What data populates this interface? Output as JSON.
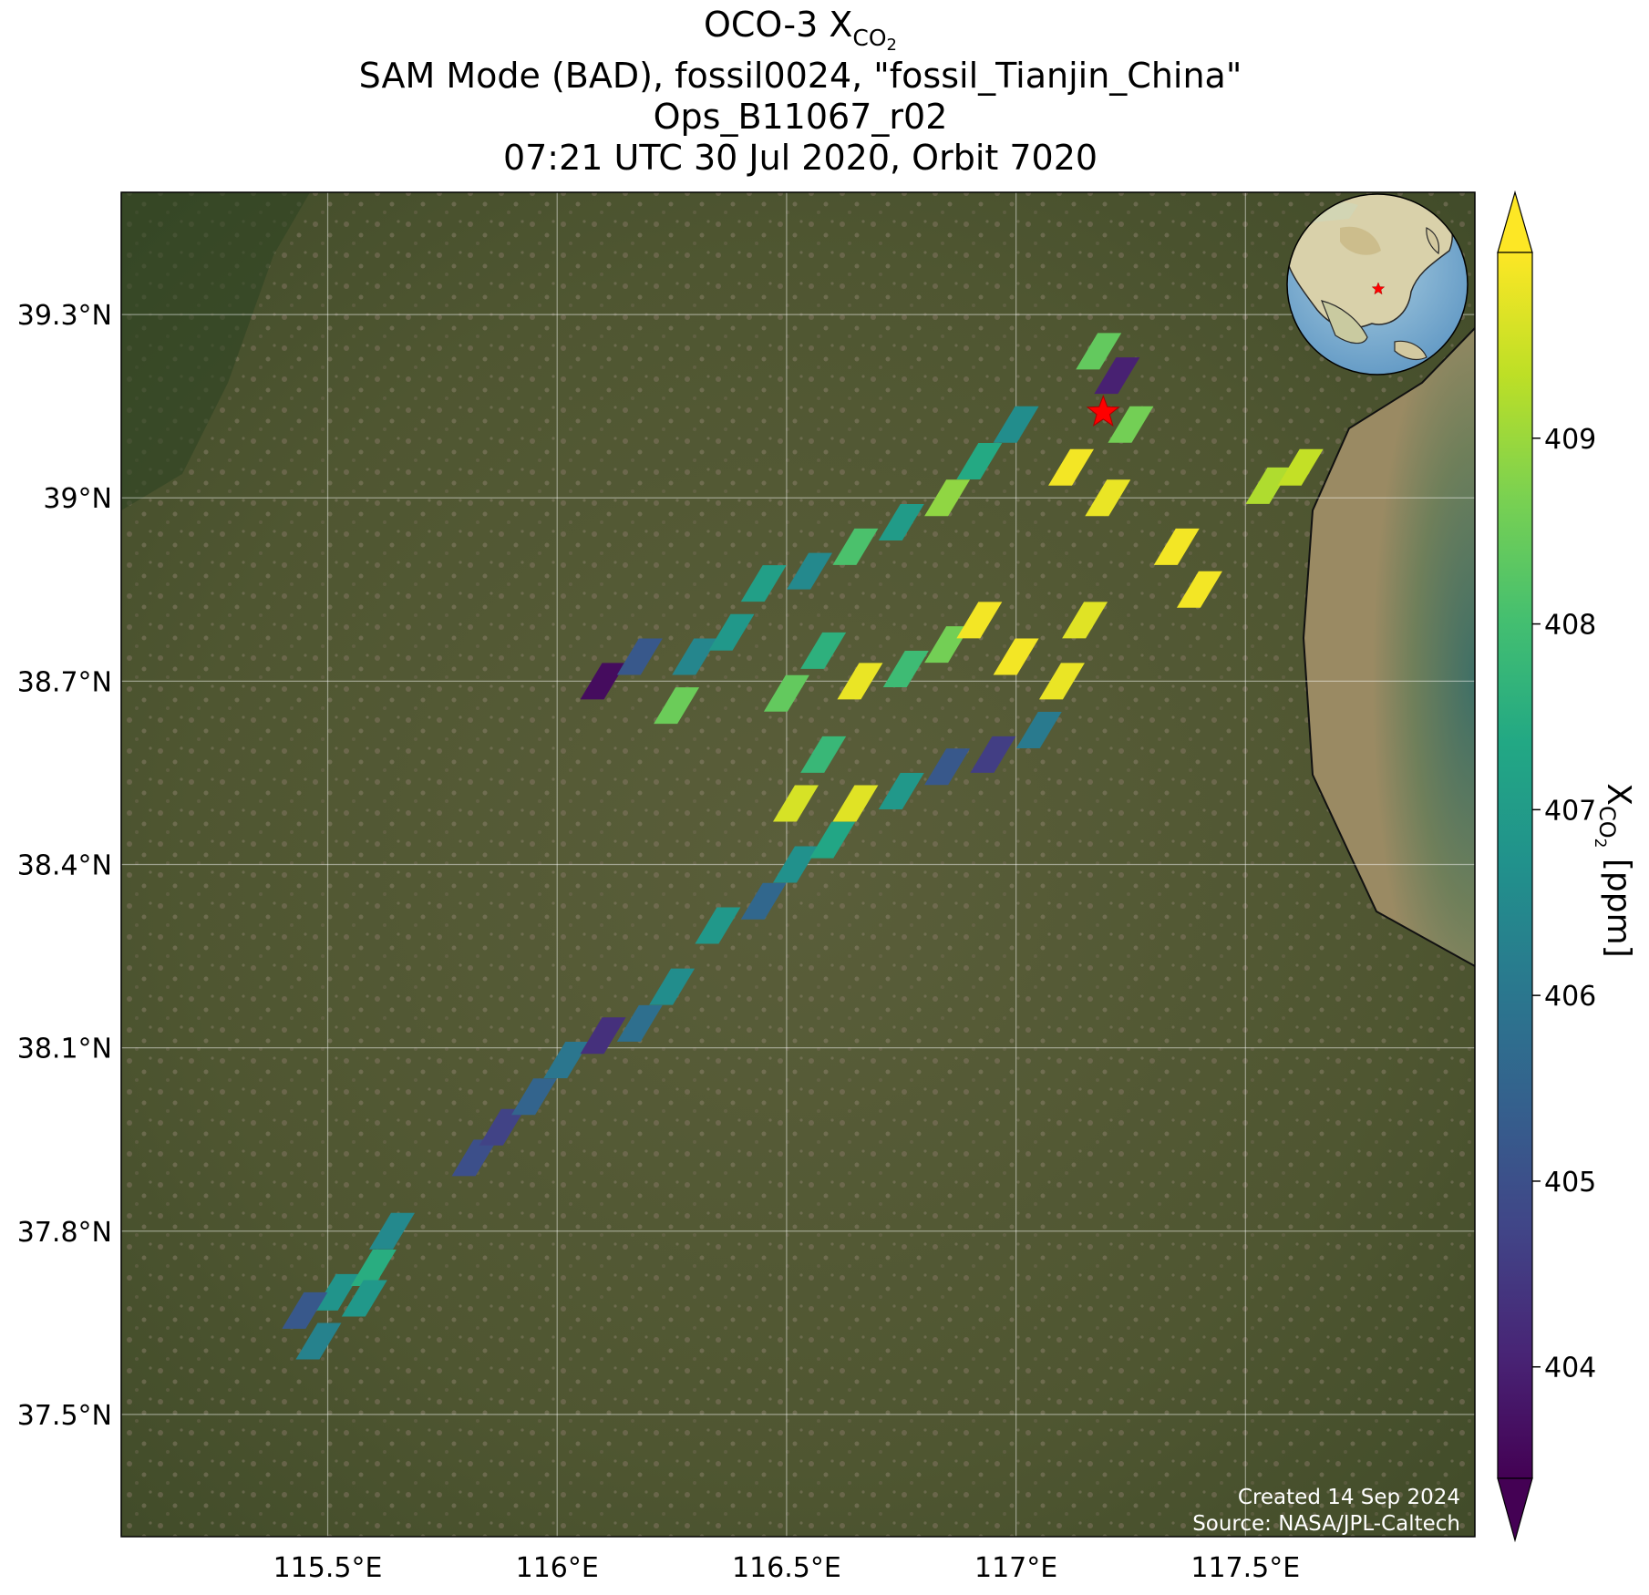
{
  "title": {
    "line1_prefix": "OCO-3 X",
    "line1_sub": "CO",
    "line1_sub2": "2",
    "line2": "SAM Mode (BAD), fossil0024, \"fossil_Tianjin_China\"",
    "line3": "Ops_B11067_r02",
    "line4": "07:21 UTC 30 Jul 2020, Orbit 7020"
  },
  "map": {
    "lon_ticks": [
      "115.5°E",
      "116°E",
      "116.5°E",
      "117°E",
      "117.5°E"
    ],
    "lat_ticks": [
      "39.3°N",
      "39°N",
      "38.7°N",
      "38.4°N",
      "38.1°N",
      "37.8°N",
      "37.5°N"
    ],
    "extent": {
      "lon": [
        115.05,
        118.0
      ],
      "lat": [
        37.3,
        39.5
      ]
    },
    "grid": true,
    "target_marker": {
      "lon": 117.19,
      "lat": 39.14,
      "symbol": "star",
      "color": "#ff0000"
    },
    "inset": "globe-icon",
    "background": "satellite-imagery"
  },
  "colorbar": {
    "label_prefix": "X",
    "label_sub": "CO",
    "label_sub2": "2",
    "label_suffix": " [ppm]",
    "ticks": [
      "404",
      "405",
      "406",
      "407",
      "408",
      "409"
    ],
    "range": [
      403.4,
      410.0
    ],
    "colormap": "viridis",
    "extend": "both"
  },
  "credits": {
    "created": "Created 14 Sep 2024",
    "source": "Source: NASA/JPL-Caltech"
  },
  "chart_data": {
    "type": "scatter",
    "variable": "XCO2",
    "units": "ppm",
    "x_axis": "longitude",
    "y_axis": "latitude",
    "xlim": [
      115.05,
      118.0
    ],
    "ylim": [
      37.3,
      39.5
    ],
    "points": [
      {
        "lon": 115.48,
        "lat": 37.62,
        "v": 406.3
      },
      {
        "lon": 115.52,
        "lat": 37.7,
        "v": 406.8
      },
      {
        "lon": 115.45,
        "lat": 37.67,
        "v": 405.2
      },
      {
        "lon": 115.6,
        "lat": 37.74,
        "v": 407.5
      },
      {
        "lon": 115.64,
        "lat": 37.8,
        "v": 406.5
      },
      {
        "lon": 115.58,
        "lat": 37.69,
        "v": 406.9
      },
      {
        "lon": 115.82,
        "lat": 37.92,
        "v": 405.0
      },
      {
        "lon": 115.88,
        "lat": 37.97,
        "v": 404.7
      },
      {
        "lon": 115.95,
        "lat": 38.02,
        "v": 405.5
      },
      {
        "lon": 116.02,
        "lat": 38.08,
        "v": 406.0
      },
      {
        "lon": 116.1,
        "lat": 38.12,
        "v": 404.3
      },
      {
        "lon": 116.18,
        "lat": 38.14,
        "v": 405.8
      },
      {
        "lon": 116.25,
        "lat": 38.2,
        "v": 406.6
      },
      {
        "lon": 116.35,
        "lat": 38.3,
        "v": 406.9
      },
      {
        "lon": 116.45,
        "lat": 38.34,
        "v": 405.6
      },
      {
        "lon": 116.52,
        "lat": 38.4,
        "v": 406.7
      },
      {
        "lon": 116.6,
        "lat": 38.44,
        "v": 407.3
      },
      {
        "lon": 116.52,
        "lat": 38.5,
        "v": 409.6
      },
      {
        "lon": 116.58,
        "lat": 38.58,
        "v": 407.8
      },
      {
        "lon": 116.65,
        "lat": 38.5,
        "v": 409.7
      },
      {
        "lon": 116.75,
        "lat": 38.52,
        "v": 406.9
      },
      {
        "lon": 116.85,
        "lat": 38.56,
        "v": 405.2
      },
      {
        "lon": 116.95,
        "lat": 38.58,
        "v": 404.6
      },
      {
        "lon": 117.05,
        "lat": 38.62,
        "v": 406.1
      },
      {
        "lon": 116.5,
        "lat": 38.68,
        "v": 408.4
      },
      {
        "lon": 116.58,
        "lat": 38.75,
        "v": 407.6
      },
      {
        "lon": 116.66,
        "lat": 38.7,
        "v": 409.8
      },
      {
        "lon": 116.76,
        "lat": 38.72,
        "v": 407.9
      },
      {
        "lon": 116.85,
        "lat": 38.76,
        "v": 408.6
      },
      {
        "lon": 116.92,
        "lat": 38.8,
        "v": 409.9
      },
      {
        "lon": 117.0,
        "lat": 38.74,
        "v": 409.9
      },
      {
        "lon": 117.1,
        "lat": 38.7,
        "v": 409.8
      },
      {
        "lon": 117.15,
        "lat": 38.8,
        "v": 409.7
      },
      {
        "lon": 116.1,
        "lat": 38.7,
        "v": 403.6
      },
      {
        "lon": 116.18,
        "lat": 38.74,
        "v": 405.2
      },
      {
        "lon": 116.26,
        "lat": 38.66,
        "v": 408.5
      },
      {
        "lon": 116.3,
        "lat": 38.74,
        "v": 406.4
      },
      {
        "lon": 116.38,
        "lat": 38.78,
        "v": 406.9
      },
      {
        "lon": 116.45,
        "lat": 38.86,
        "v": 407.1
      },
      {
        "lon": 116.55,
        "lat": 38.88,
        "v": 406.5
      },
      {
        "lon": 116.65,
        "lat": 38.92,
        "v": 408.1
      },
      {
        "lon": 116.75,
        "lat": 38.96,
        "v": 407.0
      },
      {
        "lon": 116.85,
        "lat": 39.0,
        "v": 408.9
      },
      {
        "lon": 116.92,
        "lat": 39.06,
        "v": 407.4
      },
      {
        "lon": 117.0,
        "lat": 39.12,
        "v": 406.6
      },
      {
        "lon": 117.12,
        "lat": 39.05,
        "v": 409.9
      },
      {
        "lon": 117.2,
        "lat": 39.0,
        "v": 409.8
      },
      {
        "lon": 117.35,
        "lat": 38.92,
        "v": 409.9
      },
      {
        "lon": 117.4,
        "lat": 38.85,
        "v": 409.9
      },
      {
        "lon": 117.55,
        "lat": 39.02,
        "v": 409.2
      },
      {
        "lon": 117.62,
        "lat": 39.05,
        "v": 409.4
      },
      {
        "lon": 117.18,
        "lat": 39.24,
        "v": 408.4
      },
      {
        "lon": 117.22,
        "lat": 39.2,
        "v": 404.0
      },
      {
        "lon": 117.25,
        "lat": 39.12,
        "v": 408.6
      }
    ]
  }
}
